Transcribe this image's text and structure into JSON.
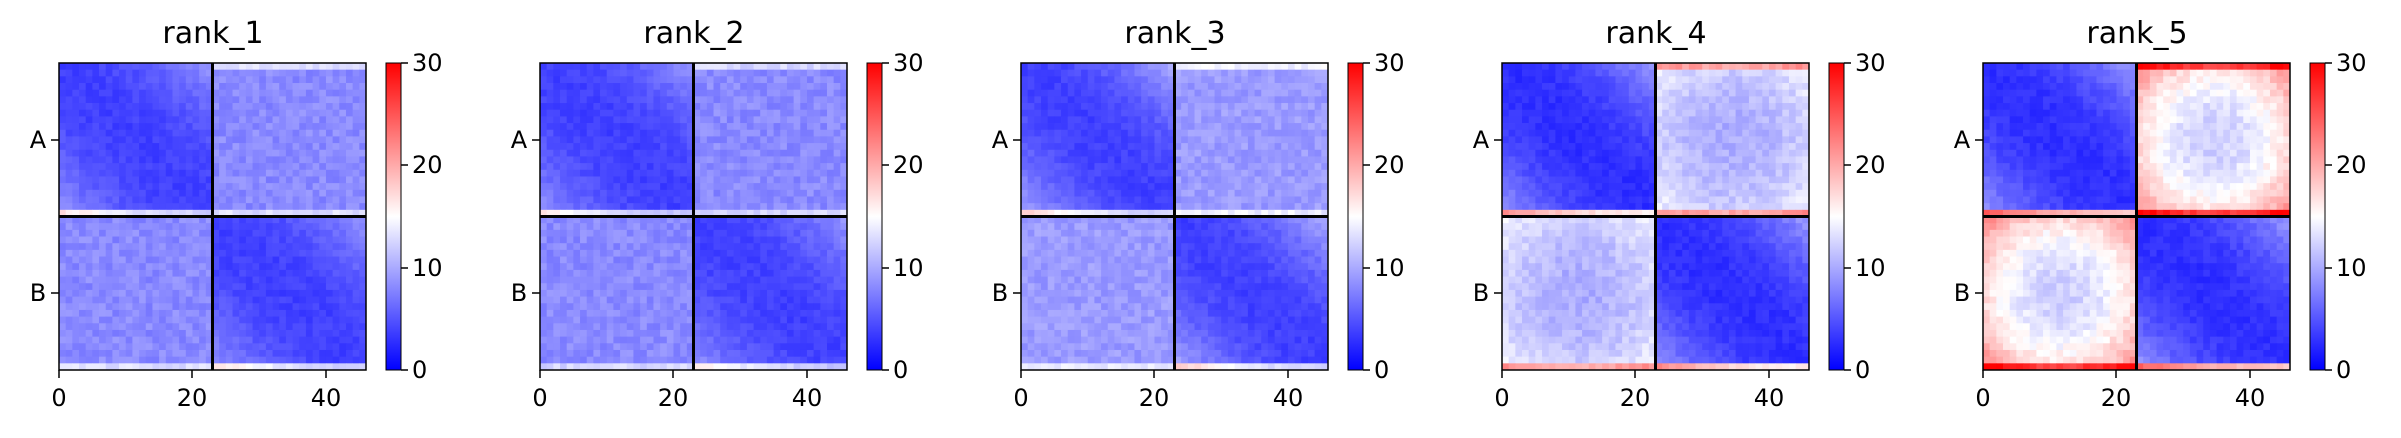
{
  "chart_data": [
    {
      "type": "heatmap",
      "title": "rank_1",
      "xlabel": "",
      "ylabel": "",
      "x_ticks": [
        "0",
        "20",
        "40"
      ],
      "y_tick_labels": [
        "A",
        "B"
      ],
      "colorbar": {
        "ticks": [
          "0",
          "10",
          "20",
          "30"
        ],
        "range": [
          0,
          30
        ],
        "colormap": "bwr"
      },
      "bins": 46,
      "boundary": 23,
      "offdiag_level": 7,
      "intra_base": 3,
      "intra_slope": 0.04,
      "center_bump": 0,
      "edge_highlight": 14
    },
    {
      "type": "heatmap",
      "title": "rank_2",
      "xlabel": "",
      "ylabel": "",
      "x_ticks": [
        "0",
        "20",
        "40"
      ],
      "y_tick_labels": [
        "A",
        "B"
      ],
      "colorbar": {
        "ticks": [
          "0",
          "10",
          "20",
          "30"
        ],
        "range": [
          0,
          30
        ],
        "colormap": "bwr"
      },
      "bins": 46,
      "boundary": 23,
      "offdiag_level": 7,
      "intra_base": 3,
      "intra_slope": 0.04,
      "center_bump": 0,
      "edge_highlight": 13
    },
    {
      "type": "heatmap",
      "title": "rank_3",
      "xlabel": "",
      "ylabel": "",
      "x_ticks": [
        "0",
        "20",
        "40"
      ],
      "y_tick_labels": [
        "A",
        "B"
      ],
      "colorbar": {
        "ticks": [
          "0",
          "10",
          "20",
          "30"
        ],
        "range": [
          0,
          30
        ],
        "colormap": "bwr"
      },
      "bins": 46,
      "boundary": 23,
      "offdiag_level": 8,
      "intra_base": 3,
      "intra_slope": 0.05,
      "center_bump": 0,
      "edge_highlight": 14
    },
    {
      "type": "heatmap",
      "title": "rank_4",
      "xlabel": "",
      "ylabel": "",
      "x_ticks": [
        "0",
        "20",
        "40"
      ],
      "y_tick_labels": [
        "A",
        "B"
      ],
      "colorbar": {
        "ticks": [
          "0",
          "10",
          "20",
          "30"
        ],
        "range": [
          0,
          30
        ],
        "colormap": "bwr"
      },
      "bins": 46,
      "boundary": 23,
      "offdiag_level": 13,
      "intra_base": 2,
      "intra_slope": 0.05,
      "center_bump": -4,
      "edge_highlight": 22
    },
    {
      "type": "heatmap",
      "title": "rank_5",
      "xlabel": "",
      "ylabel": "",
      "x_ticks": [
        "0",
        "20",
        "40"
      ],
      "y_tick_labels": [
        "A",
        "B"
      ],
      "colorbar": {
        "ticks": [
          "0",
          "10",
          "20",
          "30"
        ],
        "range": [
          0,
          30
        ],
        "colormap": "bwr"
      },
      "bins": 46,
      "boundary": 23,
      "offdiag_level": 20,
      "intra_base": 2,
      "intra_slope": 0.05,
      "center_bump": -9,
      "edge_highlight": 26
    }
  ]
}
